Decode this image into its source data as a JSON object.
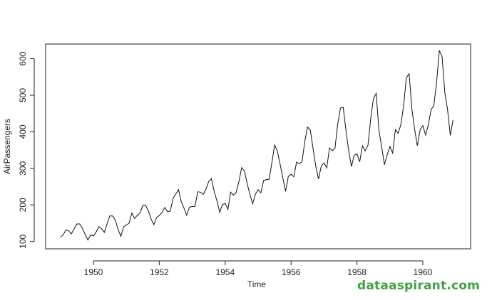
{
  "chart_data": {
    "type": "line",
    "xlabel": "Time",
    "ylabel": "AirPassengers",
    "xlim": [
      1948.55,
      1961.45
    ],
    "ylim": [
      80,
      640
    ],
    "x_ticks": [
      1950,
      1952,
      1954,
      1956,
      1958,
      1960
    ],
    "y_ticks": [
      100,
      200,
      300,
      400,
      500,
      600
    ],
    "grid": false,
    "x_start": 1949,
    "x_step_per_point": 0.0833333,
    "series": [
      {
        "values": [
          112,
          118,
          132,
          129,
          121,
          135,
          148,
          148,
          136,
          119,
          104,
          118,
          115,
          126,
          141,
          135,
          125,
          149,
          170,
          170,
          158,
          133,
          114,
          140,
          145,
          150,
          178,
          163,
          172,
          178,
          199,
          199,
          184,
          162,
          146,
          166,
          171,
          180,
          193,
          181,
          183,
          218,
          230,
          242,
          209,
          191,
          172,
          194,
          196,
          196,
          236,
          235,
          229,
          243,
          264,
          272,
          237,
          211,
          180,
          201,
          204,
          188,
          235,
          227,
          234,
          264,
          302,
          293,
          259,
          229,
          203,
          229,
          242,
          233,
          267,
          269,
          270,
          315,
          364,
          347,
          312,
          274,
          237,
          278,
          284,
          277,
          317,
          313,
          318,
          374,
          413,
          405,
          355,
          306,
          271,
          306,
          315,
          301,
          356,
          348,
          355,
          422,
          465,
          467,
          404,
          347,
          305,
          336,
          340,
          318,
          362,
          348,
          363,
          435,
          491,
          505,
          404,
          359,
          310,
          337,
          360,
          342,
          406,
          396,
          420,
          472,
          548,
          559,
          463,
          407,
          362,
          405,
          417,
          391,
          419,
          461,
          472,
          535,
          622,
          606,
          508,
          461,
          390,
          432
        ]
      }
    ]
  },
  "watermark": "dataaspirant.com"
}
